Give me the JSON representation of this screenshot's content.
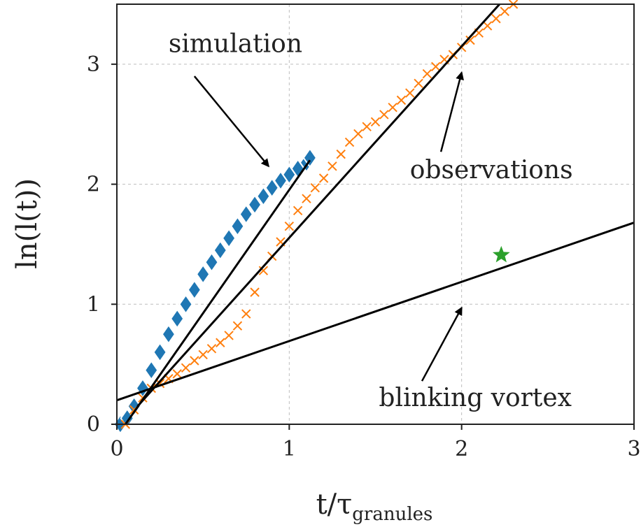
{
  "chart_data": {
    "type": "scatter",
    "xlabel": "t/τgranules",
    "xlabel_main": "t/τ",
    "xlabel_sub": "granules",
    "ylabel": "ln(l(t))",
    "xlim": [
      0,
      3
    ],
    "ylim": [
      0,
      3.5
    ],
    "xticks": [
      0,
      1,
      2,
      3
    ],
    "yticks": [
      0,
      1,
      2,
      3
    ],
    "xtick_labels": [
      "0",
      "1",
      "2",
      "3"
    ],
    "ytick_labels": [
      "0",
      "1",
      "2",
      "3"
    ],
    "grid": true,
    "series": [
      {
        "name": "simulation",
        "marker": "diamond",
        "color": "#1f77b4",
        "x": [
          0.02,
          0.06,
          0.1,
          0.15,
          0.2,
          0.25,
          0.3,
          0.35,
          0.4,
          0.45,
          0.5,
          0.55,
          0.6,
          0.65,
          0.7,
          0.75,
          0.8,
          0.85,
          0.9,
          0.95,
          1.0,
          1.05,
          1.1,
          1.12
        ],
        "y": [
          0.0,
          0.05,
          0.15,
          0.3,
          0.45,
          0.6,
          0.75,
          0.88,
          1.0,
          1.12,
          1.25,
          1.35,
          1.45,
          1.55,
          1.65,
          1.75,
          1.83,
          1.9,
          1.97,
          2.03,
          2.08,
          2.13,
          2.18,
          2.22
        ]
      },
      {
        "name": "observations",
        "marker": "x",
        "color": "#ff7f0e",
        "x": [
          0.05,
          0.1,
          0.15,
          0.2,
          0.25,
          0.3,
          0.35,
          0.4,
          0.45,
          0.5,
          0.55,
          0.6,
          0.65,
          0.7,
          0.75,
          0.8,
          0.85,
          0.9,
          0.95,
          1.0,
          1.05,
          1.1,
          1.15,
          1.2,
          1.25,
          1.3,
          1.35,
          1.4,
          1.45,
          1.5,
          1.55,
          1.6,
          1.65,
          1.7,
          1.75,
          1.8,
          1.85,
          1.9,
          1.95,
          2.0,
          2.05,
          2.1,
          2.15,
          2.2,
          2.25,
          2.3
        ],
        "y": [
          0.0,
          0.12,
          0.22,
          0.3,
          0.34,
          0.38,
          0.42,
          0.47,
          0.53,
          0.58,
          0.63,
          0.68,
          0.74,
          0.82,
          0.92,
          1.1,
          1.28,
          1.4,
          1.52,
          1.65,
          1.78,
          1.88,
          1.97,
          2.05,
          2.15,
          2.25,
          2.35,
          2.42,
          2.48,
          2.52,
          2.58,
          2.64,
          2.7,
          2.76,
          2.84,
          2.92,
          2.98,
          3.04,
          3.08,
          3.14,
          3.2,
          3.26,
          3.32,
          3.38,
          3.44,
          3.5
        ]
      },
      {
        "name": "simulation fit",
        "type": "line",
        "color": "#000000",
        "x": [
          0.05,
          1.12
        ],
        "y": [
          0.0,
          2.2
        ]
      },
      {
        "name": "observations fit",
        "type": "line",
        "color": "#000000",
        "x": [
          0.12,
          2.22
        ],
        "y": [
          0.15,
          3.5
        ]
      },
      {
        "name": "blinking vortex fit",
        "type": "line",
        "color": "#000000",
        "x": [
          0.0,
          3.0
        ],
        "y": [
          0.2,
          1.68
        ]
      },
      {
        "name": "star",
        "marker": "star",
        "color": "#2ca02c",
        "x": [
          2.23
        ],
        "y": [
          1.41
        ]
      }
    ],
    "annotations": [
      {
        "text": "simulation",
        "x": 0.3,
        "y": 3.1,
        "arrow_from": [
          0.45,
          2.9
        ],
        "arrow_to": [
          0.88,
          2.15
        ]
      },
      {
        "text": "observations",
        "x": 1.7,
        "y": 2.05,
        "arrow_from": [
          1.88,
          2.27
        ],
        "arrow_to": [
          2.0,
          2.93
        ]
      },
      {
        "text": "blinking vortex",
        "x": 1.52,
        "y": 0.15,
        "arrow_from": [
          1.77,
          0.36
        ],
        "arrow_to": [
          2.0,
          0.97
        ]
      }
    ]
  }
}
